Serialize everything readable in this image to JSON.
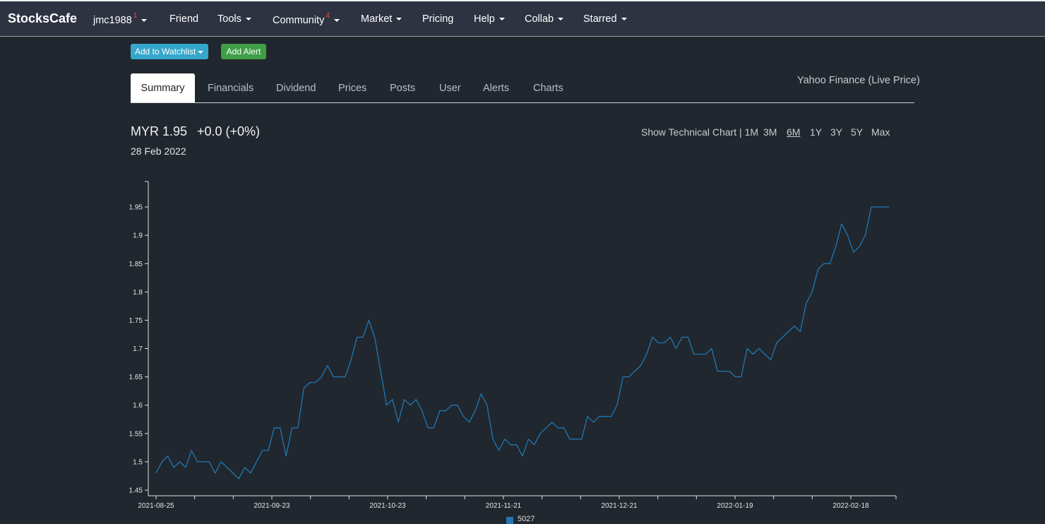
{
  "navbar": {
    "brand": "StocksCafe",
    "items": [
      {
        "label": "jmc1988",
        "badge": "1",
        "dropdown": true
      },
      {
        "label": "Friend",
        "badge": "",
        "dropdown": false
      },
      {
        "label": "Tools",
        "badge": "",
        "dropdown": true
      },
      {
        "label": "Community",
        "badge": "4",
        "dropdown": true
      },
      {
        "label": "Market",
        "badge": "",
        "dropdown": true
      },
      {
        "label": "Pricing",
        "badge": "",
        "dropdown": false
      },
      {
        "label": "Help",
        "badge": "",
        "dropdown": true
      },
      {
        "label": "Collab",
        "badge": "",
        "dropdown": true
      },
      {
        "label": "Starred",
        "badge": "",
        "dropdown": true
      }
    ]
  },
  "actions": {
    "watchlist_label": "Add to Watchlist",
    "alert_label": "Add Alert"
  },
  "tabs": [
    "Summary",
    "Financials",
    "Dividend",
    "Prices",
    "Posts",
    "User",
    "Alerts",
    "Charts"
  ],
  "source": "Yahoo Finance (Live Price)",
  "quote": {
    "price": "MYR 1.95",
    "change": "+0.0 (+0%)",
    "date": "28 Feb 2022"
  },
  "range": {
    "prefix": "Show Technical Chart | 1M",
    "options": [
      "3M",
      "6M",
      "1Y",
      "3Y",
      "5Y",
      "Max"
    ],
    "selected": "6M"
  },
  "colors": {
    "line": "#1f77b4",
    "background": "#21272e",
    "navbar": "#2d3341"
  },
  "chart_data": {
    "type": "line",
    "series": [
      {
        "name": "5027"
      }
    ],
    "x_ticks": [
      "2021-08-25",
      "2021-09-23",
      "2021-10-23",
      "2021-11-21",
      "2021-12-21",
      "2022-01-19",
      "2022-02-18"
    ],
    "y_ticks": [
      "1.45",
      "1.5",
      "1.55",
      "1.6",
      "1.65",
      "1.7",
      "1.75",
      "1.8",
      "1.85",
      "1.9",
      "1.95"
    ],
    "ylim": [
      1.44,
      1.995
    ],
    "values": [
      1.48,
      1.5,
      1.51,
      1.49,
      1.5,
      1.49,
      1.52,
      1.5,
      1.5,
      1.5,
      1.48,
      1.5,
      1.49,
      1.48,
      1.47,
      1.49,
      1.48,
      1.5,
      1.52,
      1.52,
      1.56,
      1.56,
      1.51,
      1.56,
      1.56,
      1.63,
      1.64,
      1.64,
      1.65,
      1.67,
      1.65,
      1.65,
      1.65,
      1.68,
      1.72,
      1.72,
      1.75,
      1.72,
      1.66,
      1.6,
      1.61,
      1.57,
      1.61,
      1.6,
      1.61,
      1.59,
      1.56,
      1.56,
      1.59,
      1.59,
      1.6,
      1.6,
      1.58,
      1.57,
      1.59,
      1.62,
      1.6,
      1.54,
      1.52,
      1.54,
      1.53,
      1.53,
      1.51,
      1.54,
      1.53,
      1.55,
      1.56,
      1.57,
      1.56,
      1.56,
      1.54,
      1.54,
      1.54,
      1.58,
      1.57,
      1.58,
      1.58,
      1.58,
      1.6,
      1.65,
      1.65,
      1.66,
      1.67,
      1.69,
      1.72,
      1.71,
      1.71,
      1.72,
      1.7,
      1.72,
      1.72,
      1.69,
      1.69,
      1.69,
      1.7,
      1.66,
      1.66,
      1.66,
      1.65,
      1.65,
      1.7,
      1.69,
      1.7,
      1.69,
      1.68,
      1.71,
      1.72,
      1.73,
      1.74,
      1.73,
      1.78,
      1.8,
      1.84,
      1.85,
      1.85,
      1.88,
      1.92,
      1.9,
      1.87,
      1.88,
      1.9,
      1.95,
      1.95,
      1.95,
      1.95
    ]
  }
}
